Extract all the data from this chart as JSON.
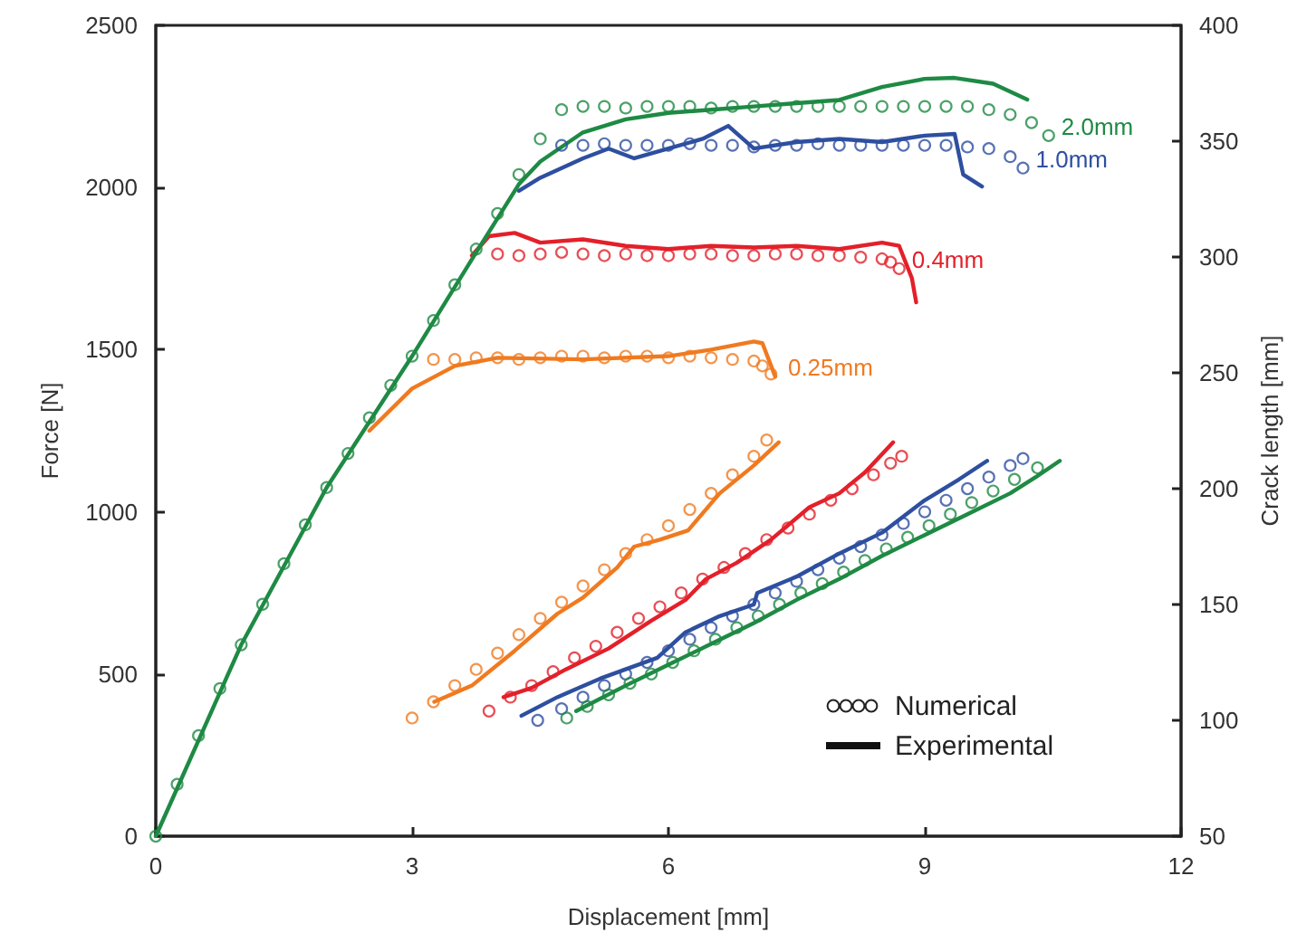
{
  "chart_data": {
    "type": "line",
    "xlabel": "Displacement [mm]",
    "ylabel": "Force [N]",
    "y2label": "Crack length [mm]",
    "xlim": [
      0,
      12
    ],
    "xticks": [
      0,
      3,
      6,
      9,
      12
    ],
    "ylim": [
      0,
      2500
    ],
    "yticks": [
      0,
      500,
      1000,
      1500,
      2000,
      2500
    ],
    "y2lim": [
      50,
      400
    ],
    "y2ticks": [
      50,
      100,
      150,
      200,
      250,
      300,
      350,
      400
    ],
    "grid": false,
    "annotations": [
      {
        "text": "2.0mm",
        "x": 10.45,
        "y": 2160
      },
      {
        "text": "1.0mm",
        "x": 10.15,
        "y": 2060
      },
      {
        "text": "0.4mm",
        "x": 8.7,
        "y": 1750
      },
      {
        "text": "0.25mm",
        "x": 7.25,
        "y": 1417
      },
      "Numerical",
      "Experimental"
    ],
    "series": [
      {
        "type": "scatter",
        "marker": "circle",
        "color": "#f07a20",
        "x": [
          3.25,
          3.5,
          3.75,
          4,
          4.25,
          4.5,
          4.75,
          5,
          5.25,
          5.5,
          5.75,
          6,
          6.25,
          6.5,
          6.75,
          7,
          7.1,
          7.2
        ],
        "values": [
          1470,
          1470,
          1475,
          1475,
          1470,
          1475,
          1480,
          1480,
          1475,
          1480,
          1480,
          1475,
          1480,
          1475,
          1470,
          1465,
          1450,
          1425
        ]
      },
      {
        "type": "scatter",
        "marker": "circle",
        "color": "#e3202a",
        "x": [
          4,
          4.25,
          4.5,
          4.75,
          5,
          5.25,
          5.5,
          5.75,
          6,
          6.25,
          6.5,
          6.75,
          7,
          7.25,
          7.5,
          7.75,
          8,
          8.25,
          8.5,
          8.6,
          8.7
        ],
        "values": [
          1795,
          1790,
          1795,
          1800,
          1795,
          1790,
          1795,
          1790,
          1790,
          1795,
          1795,
          1790,
          1790,
          1795,
          1795,
          1790,
          1790,
          1785,
          1780,
          1770,
          1750
        ]
      },
      {
        "type": "scatter",
        "marker": "circle",
        "color": "#2e4fa0",
        "x": [
          4.75,
          5,
          5.25,
          5.5,
          5.75,
          6,
          6.25,
          6.5,
          6.75,
          7,
          7.25,
          7.5,
          7.75,
          8,
          8.25,
          8.5,
          8.75,
          9,
          9.25,
          9.5,
          9.75,
          10,
          10.15
        ],
        "values": [
          2130,
          2130,
          2135,
          2130,
          2130,
          2130,
          2135,
          2130,
          2130,
          2125,
          2130,
          2130,
          2135,
          2130,
          2130,
          2130,
          2130,
          2130,
          2130,
          2125,
          2120,
          2095,
          2060
        ]
      },
      {
        "type": "scatter",
        "marker": "circle",
        "color": "#1e8a44",
        "x": [
          0,
          0.25,
          0.5,
          0.75,
          1,
          1.25,
          1.5,
          1.75,
          2,
          2.25,
          2.5,
          2.75,
          3,
          3.25,
          3.5,
          3.75,
          4,
          4.25,
          4.5,
          4.75,
          5,
          5.25,
          5.5,
          5.75,
          6,
          6.25,
          6.5,
          6.75,
          7,
          7.25,
          7.5,
          7.75,
          8,
          8.25,
          8.5,
          8.75,
          9,
          9.25,
          9.5,
          9.75,
          10,
          10.25,
          10.45
        ],
        "values": [
          0,
          160,
          310,
          455,
          590,
          715,
          840,
          960,
          1075,
          1180,
          1290,
          1390,
          1480,
          1590,
          1700,
          1810,
          1920,
          2040,
          2150,
          2240,
          2250,
          2250,
          2245,
          2250,
          2250,
          2250,
          2245,
          2250,
          2250,
          2250,
          2250,
          2250,
          2250,
          2250,
          2250,
          2250,
          2250,
          2250,
          2250,
          2240,
          2225,
          2200,
          2160
        ]
      },
      {
        "line_style": "solid",
        "color": "#f07a20",
        "x": [
          2.5,
          3,
          3.5,
          4,
          5,
          6,
          6.5,
          7,
          7.1,
          7.25
        ],
        "values": [
          1250,
          1380,
          1450,
          1475,
          1470,
          1480,
          1500,
          1525,
          1520,
          1417
        ]
      },
      {
        "line_style": "solid",
        "color": "#e3202a",
        "x": [
          3.7,
          3.9,
          4.2,
          4.5,
          5,
          5.5,
          6,
          6.5,
          7,
          7.5,
          8,
          8.5,
          8.7,
          8.85,
          8.9
        ],
        "values": [
          1790,
          1850,
          1860,
          1830,
          1840,
          1820,
          1810,
          1820,
          1815,
          1820,
          1810,
          1830,
          1820,
          1720,
          1646
        ]
      },
      {
        "line_style": "solid",
        "color": "#2e4fa0",
        "x": [
          4.25,
          4.5,
          5,
          5.3,
          5.6,
          6,
          6.4,
          6.7,
          7,
          7.5,
          8,
          8.5,
          9,
          9.35,
          9.45,
          9.67
        ],
        "values": [
          1990,
          2030,
          2090,
          2120,
          2090,
          2120,
          2150,
          2190,
          2120,
          2140,
          2150,
          2140,
          2160,
          2165,
          2040,
          2003
        ]
      },
      {
        "line_style": "solid",
        "color": "#1e8a44",
        "x": [
          0,
          1,
          2,
          3,
          3.75,
          4.25,
          4.5,
          5,
          5.5,
          6,
          6.5,
          7,
          7.5,
          8,
          8.5,
          9,
          9.35,
          9.8,
          10.2
        ],
        "values": [
          0,
          590,
          1075,
          1480,
          1800,
          2010,
          2080,
          2170,
          2210,
          2230,
          2240,
          2250,
          2260,
          2270,
          2310,
          2335,
          2338,
          2320,
          2271
        ]
      },
      {
        "type": "scatter",
        "marker": "circle",
        "axis": "y2",
        "color": "#f07a20",
        "x": [
          3,
          3.25,
          3.5,
          3.75,
          4,
          4.25,
          4.5,
          4.75,
          5,
          5.25,
          5.5,
          5.75,
          6,
          6.25,
          6.5,
          6.75,
          7,
          7.15
        ],
        "values": [
          101,
          108,
          115,
          122,
          129,
          137,
          144,
          151,
          158,
          165,
          172,
          178,
          184,
          191,
          198,
          206,
          214,
          221
        ]
      },
      {
        "type": "scatter",
        "marker": "circle",
        "axis": "y2",
        "color": "#e3202a",
        "x": [
          3.9,
          4.15,
          4.4,
          4.65,
          4.9,
          5.15,
          5.4,
          5.65,
          5.9,
          6.15,
          6.4,
          6.65,
          6.9,
          7.15,
          7.4,
          7.65,
          7.9,
          8.15,
          8.4,
          8.6,
          8.73
        ],
        "values": [
          104,
          110,
          115,
          121,
          127,
          132,
          138,
          144,
          149,
          155,
          161,
          166,
          172,
          178,
          183,
          189,
          195,
          200,
          206,
          211,
          214
        ]
      },
      {
        "type": "scatter",
        "marker": "circle",
        "axis": "y2",
        "color": "#2e4fa0",
        "x": [
          4.47,
          4.75,
          5,
          5.25,
          5.5,
          5.75,
          6,
          6.25,
          6.5,
          6.75,
          7,
          7.25,
          7.5,
          7.75,
          8,
          8.25,
          8.5,
          8.75,
          9,
          9.25,
          9.5,
          9.75,
          10,
          10.15
        ],
        "values": [
          100,
          105,
          110,
          115,
          120,
          125,
          130,
          135,
          140,
          145,
          150,
          155,
          160,
          165,
          170,
          175,
          180,
          185,
          190,
          195,
          200,
          205,
          210,
          213
        ]
      },
      {
        "type": "scatter",
        "marker": "circle",
        "axis": "y2",
        "color": "#1e8a44",
        "x": [
          4.81,
          5.05,
          5.3,
          5.55,
          5.8,
          6.05,
          6.3,
          6.55,
          6.8,
          7.05,
          7.3,
          7.55,
          7.8,
          8.05,
          8.3,
          8.55,
          8.8,
          9.05,
          9.3,
          9.55,
          9.8,
          10.05,
          10.32
        ],
        "values": [
          101,
          106,
          111,
          116,
          120,
          125,
          130,
          135,
          140,
          145,
          150,
          155,
          159,
          164,
          169,
          174,
          179,
          184,
          189,
          194,
          199,
          204,
          209
        ]
      },
      {
        "line_style": "solid",
        "axis": "y2",
        "color": "#f07a20",
        "x": [
          3.26,
          3.7,
          4.2,
          4.7,
          5,
          5.4,
          5.6,
          5.9,
          6.23,
          6.6,
          7,
          7.29
        ],
        "values": [
          108,
          115,
          130,
          146,
          153,
          166,
          175,
          178,
          182,
          198,
          210,
          220
        ]
      },
      {
        "line_style": "solid",
        "axis": "y2",
        "color": "#e3202a",
        "x": [
          4.07,
          4.4,
          4.8,
          5.3,
          5.8,
          6.2,
          6.44,
          6.8,
          7.2,
          7.65,
          8,
          8.3,
          8.63
        ],
        "values": [
          110,
          114,
          122,
          131,
          143,
          152,
          161,
          168,
          178,
          192,
          198,
          207,
          220
        ]
      },
      {
        "line_style": "solid",
        "axis": "y2",
        "color": "#2e4fa0",
        "x": [
          4.28,
          4.7,
          5.2,
          5.87,
          6.2,
          6.6,
          7,
          7.04,
          7.5,
          8,
          8.5,
          9,
          9.4,
          9.73
        ],
        "values": [
          102,
          110,
          118,
          127,
          138,
          145,
          150,
          155,
          162,
          172,
          181,
          195,
          204,
          212
        ]
      },
      {
        "line_style": "solid",
        "axis": "y2",
        "color": "#1e8a44",
        "x": [
          4.92,
          5.5,
          6,
          6.5,
          7,
          7.5,
          8,
          8.5,
          9,
          9.5,
          10,
          10.3,
          10.58
        ],
        "values": [
          104,
          115,
          124,
          133,
          142,
          152,
          161,
          171,
          180,
          189,
          198,
          205,
          212
        ]
      }
    ]
  }
}
